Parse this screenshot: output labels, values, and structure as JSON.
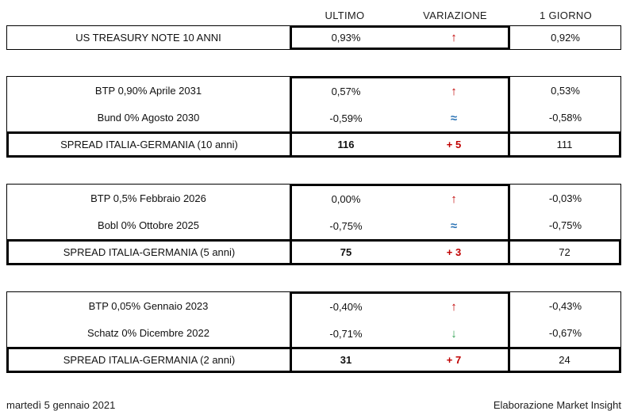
{
  "header": {
    "ultimo": "ULTIMO",
    "variazione": "VARIAZIONE",
    "giorno": "1 GIORNO"
  },
  "colors": {
    "red": "#c00000",
    "blue": "#2e75b6",
    "green": "#2fa052",
    "border": "#000000",
    "text": "#111111"
  },
  "sections": [
    {
      "rows": [
        {
          "label": "US TREASURY NOTE 10 ANNI",
          "ultimo": "0,93%",
          "trend": "up",
          "trend_glyph": "↑",
          "trend_color": "red",
          "giorno": "0,92%"
        }
      ]
    },
    {
      "rows": [
        {
          "label": "BTP 0,90% Aprile 2031",
          "ultimo": "0,57%",
          "trend": "up",
          "trend_glyph": "↑",
          "trend_color": "red",
          "giorno": "0,53%"
        },
        {
          "label": "Bund 0% Agosto 2030",
          "ultimo": "-0,59%",
          "trend": "flat",
          "trend_glyph": "≈",
          "trend_color": "blue",
          "giorno": "-0,58%"
        }
      ],
      "spread": {
        "label": "SPREAD ITALIA-GERMANIA (10 anni)",
        "ultimo": "116",
        "variazione": "+ 5",
        "variazione_color": "red",
        "giorno": "111"
      }
    },
    {
      "rows": [
        {
          "label": "BTP 0,5% Febbraio 2026",
          "ultimo": "0,00%",
          "trend": "up",
          "trend_glyph": "↑",
          "trend_color": "red",
          "giorno": "-0,03%"
        },
        {
          "label": "Bobl 0% Ottobre 2025",
          "ultimo": "-0,75%",
          "trend": "flat",
          "trend_glyph": "≈",
          "trend_color": "blue",
          "giorno": "-0,75%"
        }
      ],
      "spread": {
        "label": "SPREAD ITALIA-GERMANIA (5 anni)",
        "ultimo": "75",
        "variazione": "+ 3",
        "variazione_color": "red",
        "giorno": "72"
      }
    },
    {
      "rows": [
        {
          "label": "BTP 0,05% Gennaio 2023",
          "ultimo": "-0,40%",
          "trend": "up",
          "trend_glyph": "↑",
          "trend_color": "red",
          "giorno": "-0,43%"
        },
        {
          "label": "Schatz 0% Dicembre 2022",
          "ultimo": "-0,71%",
          "trend": "down",
          "trend_glyph": "↓",
          "trend_color": "green",
          "giorno": "-0,67%"
        }
      ],
      "spread": {
        "label": "SPREAD ITALIA-GERMANIA (2 anni)",
        "ultimo": "31",
        "variazione": "+ 7",
        "variazione_color": "red",
        "giorno": "24"
      }
    }
  ],
  "footer": {
    "date": "martedì 5 gennaio 2021",
    "credit": "Elaborazione Market Insight"
  },
  "chart_data": {
    "type": "table",
    "columns": [
      "",
      "ULTIMO",
      "VARIAZIONE",
      "1 GIORNO"
    ],
    "rows": [
      [
        "US TREASURY NOTE 10 ANNI",
        "0,93%",
        "up",
        "0,92%"
      ],
      [
        "BTP 0,90% Aprile 2031",
        "0,57%",
        "up",
        "0,53%"
      ],
      [
        "Bund 0% Agosto 2030",
        "-0,59%",
        "flat",
        "-0,58%"
      ],
      [
        "SPREAD ITALIA-GERMANIA (10 anni)",
        "116",
        "+ 5",
        "111"
      ],
      [
        "BTP 0,5% Febbraio 2026",
        "0,00%",
        "up",
        "-0,03%"
      ],
      [
        "Bobl 0% Ottobre 2025",
        "-0,75%",
        "flat",
        "-0,75%"
      ],
      [
        "SPREAD ITALIA-GERMANIA (5 anni)",
        "75",
        "+ 3",
        "72"
      ],
      [
        "BTP 0,05% Gennaio 2023",
        "-0,40%",
        "up",
        "-0,43%"
      ],
      [
        "Schatz 0% Dicembre 2022",
        "-0,71%",
        "down",
        "-0,67%"
      ],
      [
        "SPREAD ITALIA-GERMANIA (2 anni)",
        "31",
        "+ 7",
        "24"
      ]
    ]
  }
}
